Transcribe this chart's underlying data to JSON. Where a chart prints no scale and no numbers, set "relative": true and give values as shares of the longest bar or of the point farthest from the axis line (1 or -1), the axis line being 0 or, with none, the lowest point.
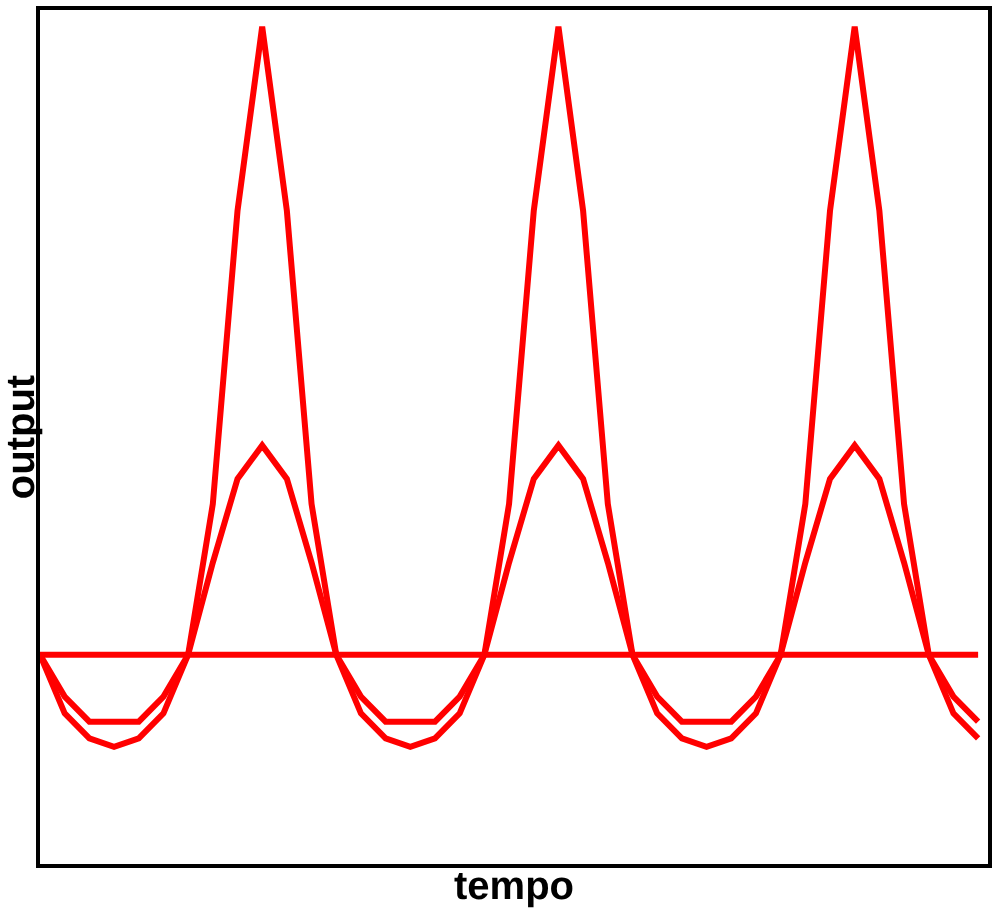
{
  "chart_data": {
    "type": "line",
    "xlabel": "tempo",
    "ylabel": "output",
    "relative": true,
    "grid": false,
    "marker": "none",
    "line_style": "solid",
    "categories": [
      null,
      null,
      null,
      null,
      null,
      null,
      null,
      null,
      null,
      null,
      null,
      null,
      null,
      null,
      null,
      null,
      null,
      null,
      null,
      null,
      null,
      null,
      null,
      null,
      null,
      null,
      null,
      null,
      null,
      null,
      null,
      null,
      null,
      null,
      null,
      null,
      null,
      null,
      null
    ],
    "series": [
      {
        "color": "#ff0000",
        "values": [
          0.25,
          0.18,
          0.15,
          0.14,
          0.15,
          0.18,
          0.25,
          0.43,
          0.78,
          1.0,
          0.78,
          0.43,
          0.25,
          0.18,
          0.15,
          0.14,
          0.15,
          0.18,
          0.25,
          0.43,
          0.78,
          1.0,
          0.78,
          0.43,
          0.25,
          0.18,
          0.15,
          0.14,
          0.15,
          0.18,
          0.25,
          0.43,
          0.78,
          1.0,
          0.78,
          0.43,
          0.25,
          0.18,
          0.15
        ]
      },
      {
        "color": "#ff0000",
        "values": [
          0.25,
          0.2,
          0.17,
          0.17,
          0.17,
          0.2,
          0.25,
          0.36,
          0.46,
          0.5,
          0.46,
          0.36,
          0.25,
          0.2,
          0.17,
          0.17,
          0.17,
          0.2,
          0.25,
          0.36,
          0.46,
          0.5,
          0.46,
          0.36,
          0.25,
          0.2,
          0.17,
          0.17,
          0.17,
          0.2,
          0.25,
          0.36,
          0.46,
          0.5,
          0.46,
          0.36,
          0.25,
          0.2,
          0.17
        ]
      },
      {
        "color": "#ff0000",
        "values": [
          0.25,
          0.25,
          0.25,
          0.25,
          0.25,
          0.25,
          0.25,
          0.25,
          0.25,
          0.25,
          0.25,
          0.25,
          0.25,
          0.25,
          0.25,
          0.25,
          0.25,
          0.25,
          0.25,
          0.25,
          0.25,
          0.25,
          0.25,
          0.25,
          0.25,
          0.25,
          0.25,
          0.25,
          0.25,
          0.25,
          0.25,
          0.25,
          0.25,
          0.25,
          0.25,
          0.25,
          0.25,
          0.25,
          0.25
        ]
      }
    ]
  }
}
